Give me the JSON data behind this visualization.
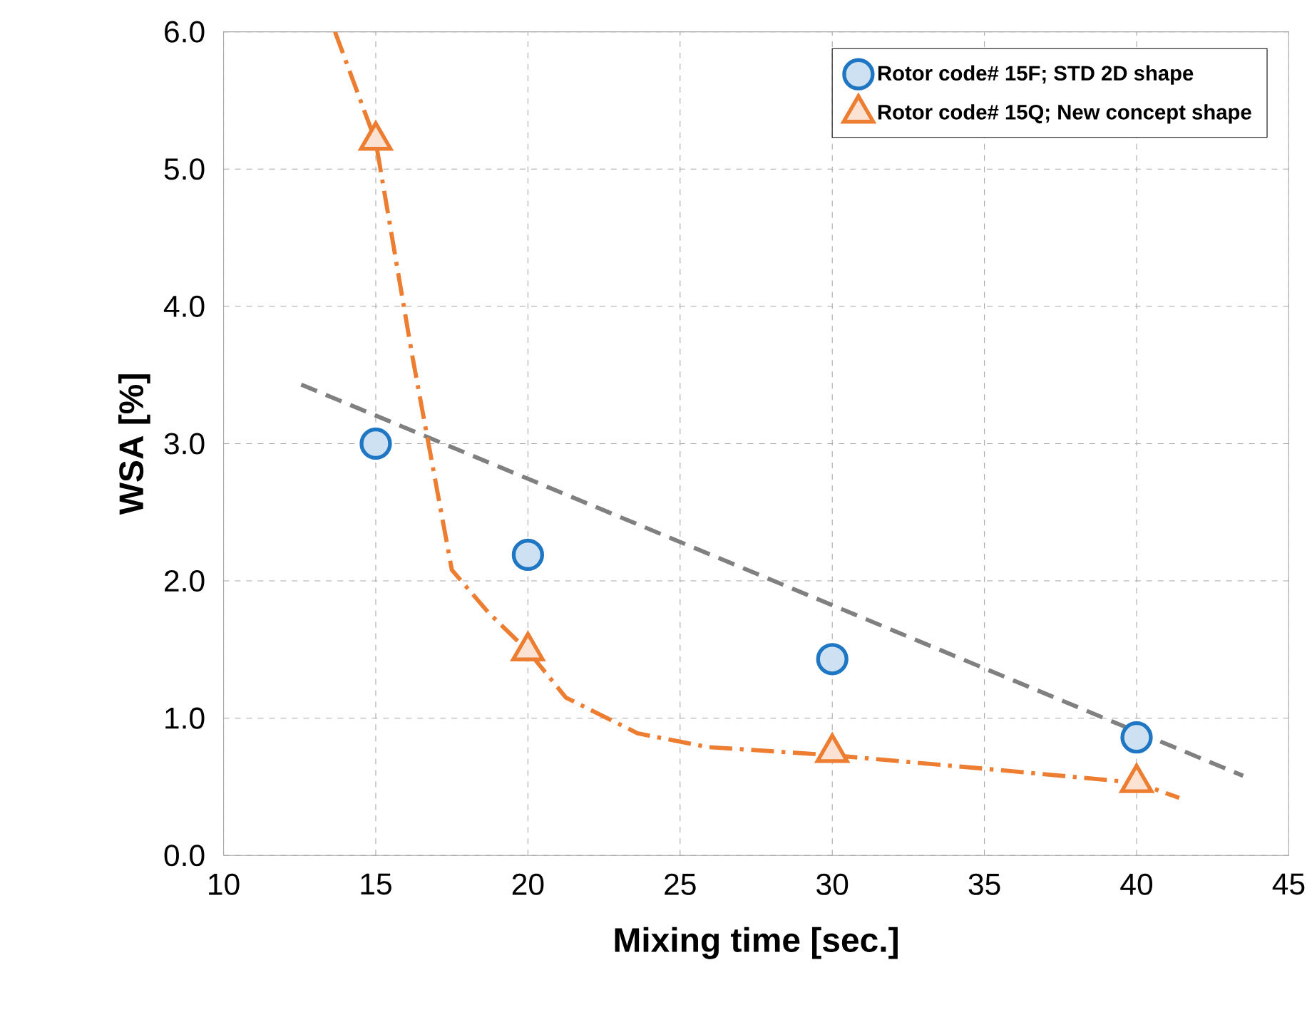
{
  "chart_data": {
    "type": "scatter",
    "xlabel": "Mixing time [sec.]",
    "ylabel": "WSA [%]",
    "xlim": [
      10,
      45
    ],
    "xticks": [
      10,
      15,
      20,
      25,
      30,
      35,
      40,
      45
    ],
    "ylim": [
      0,
      6
    ],
    "yticks": [
      {
        "value": 0,
        "label": "0.0"
      },
      {
        "value": 1,
        "label": "1.0"
      },
      {
        "value": 2,
        "label": "2.0"
      },
      {
        "value": 3,
        "label": "3.0"
      },
      {
        "value": 4,
        "label": "4.0"
      },
      {
        "value": 5,
        "label": "5.0"
      },
      {
        "value": 6,
        "label": "6.0"
      }
    ],
    "grid": true,
    "legend": "top right",
    "series": [
      {
        "type": "line",
        "color": "#808080",
        "line_style": "dashed",
        "marker": "none",
        "x": [
          12.55,
          43.5
        ],
        "values": [
          3.43,
          0.58
        ]
      },
      {
        "type": "line",
        "color": "#ed7d31",
        "line_style": "dashdot",
        "marker": "none",
        "x": [
          13.66,
          15,
          16.2,
          17.5,
          18.7,
          20,
          21.25,
          23.6,
          25.9,
          30,
          35.1,
          40,
          41.4
        ],
        "values": [
          6.0,
          5.2,
          3.64,
          2.08,
          1.77,
          1.49,
          1.15,
          0.89,
          0.79,
          0.73,
          0.63,
          0.53,
          0.42
        ]
      },
      {
        "name": "Rotor code# 15F; STD 2D shape",
        "color": "#1f77c4",
        "marker": "circle",
        "x": [
          15,
          20,
          30,
          40
        ],
        "values": [
          3.0,
          2.19,
          1.43,
          0.86
        ]
      },
      {
        "name": "Rotor code# 15Q; New concept shape",
        "color": "#ed7d31",
        "marker": "triangle",
        "x": [
          15,
          20,
          30,
          40
        ],
        "values": [
          5.21,
          1.49,
          0.75,
          0.53
        ]
      }
    ]
  }
}
